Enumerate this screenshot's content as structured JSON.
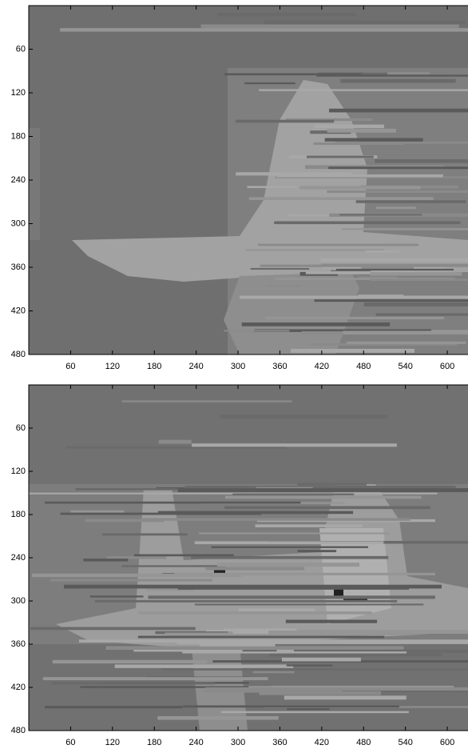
{
  "chart_data": [
    {
      "type": "image",
      "xlim": [
        0,
        640
      ],
      "ylim": [
        0,
        480
      ],
      "xticks": [
        60,
        120,
        180,
        240,
        300,
        360,
        420,
        480,
        540,
        600
      ],
      "yticks": [
        60,
        120,
        180,
        240,
        300,
        360,
        420,
        480
      ]
    },
    {
      "type": "image",
      "xlim": [
        0,
        640
      ],
      "ylim": [
        0,
        480
      ],
      "xticks": [
        60,
        120,
        180,
        240,
        300,
        360,
        420,
        480,
        540,
        600
      ],
      "yticks": [
        60,
        120,
        180,
        240,
        300,
        360,
        420,
        480
      ]
    }
  ]
}
